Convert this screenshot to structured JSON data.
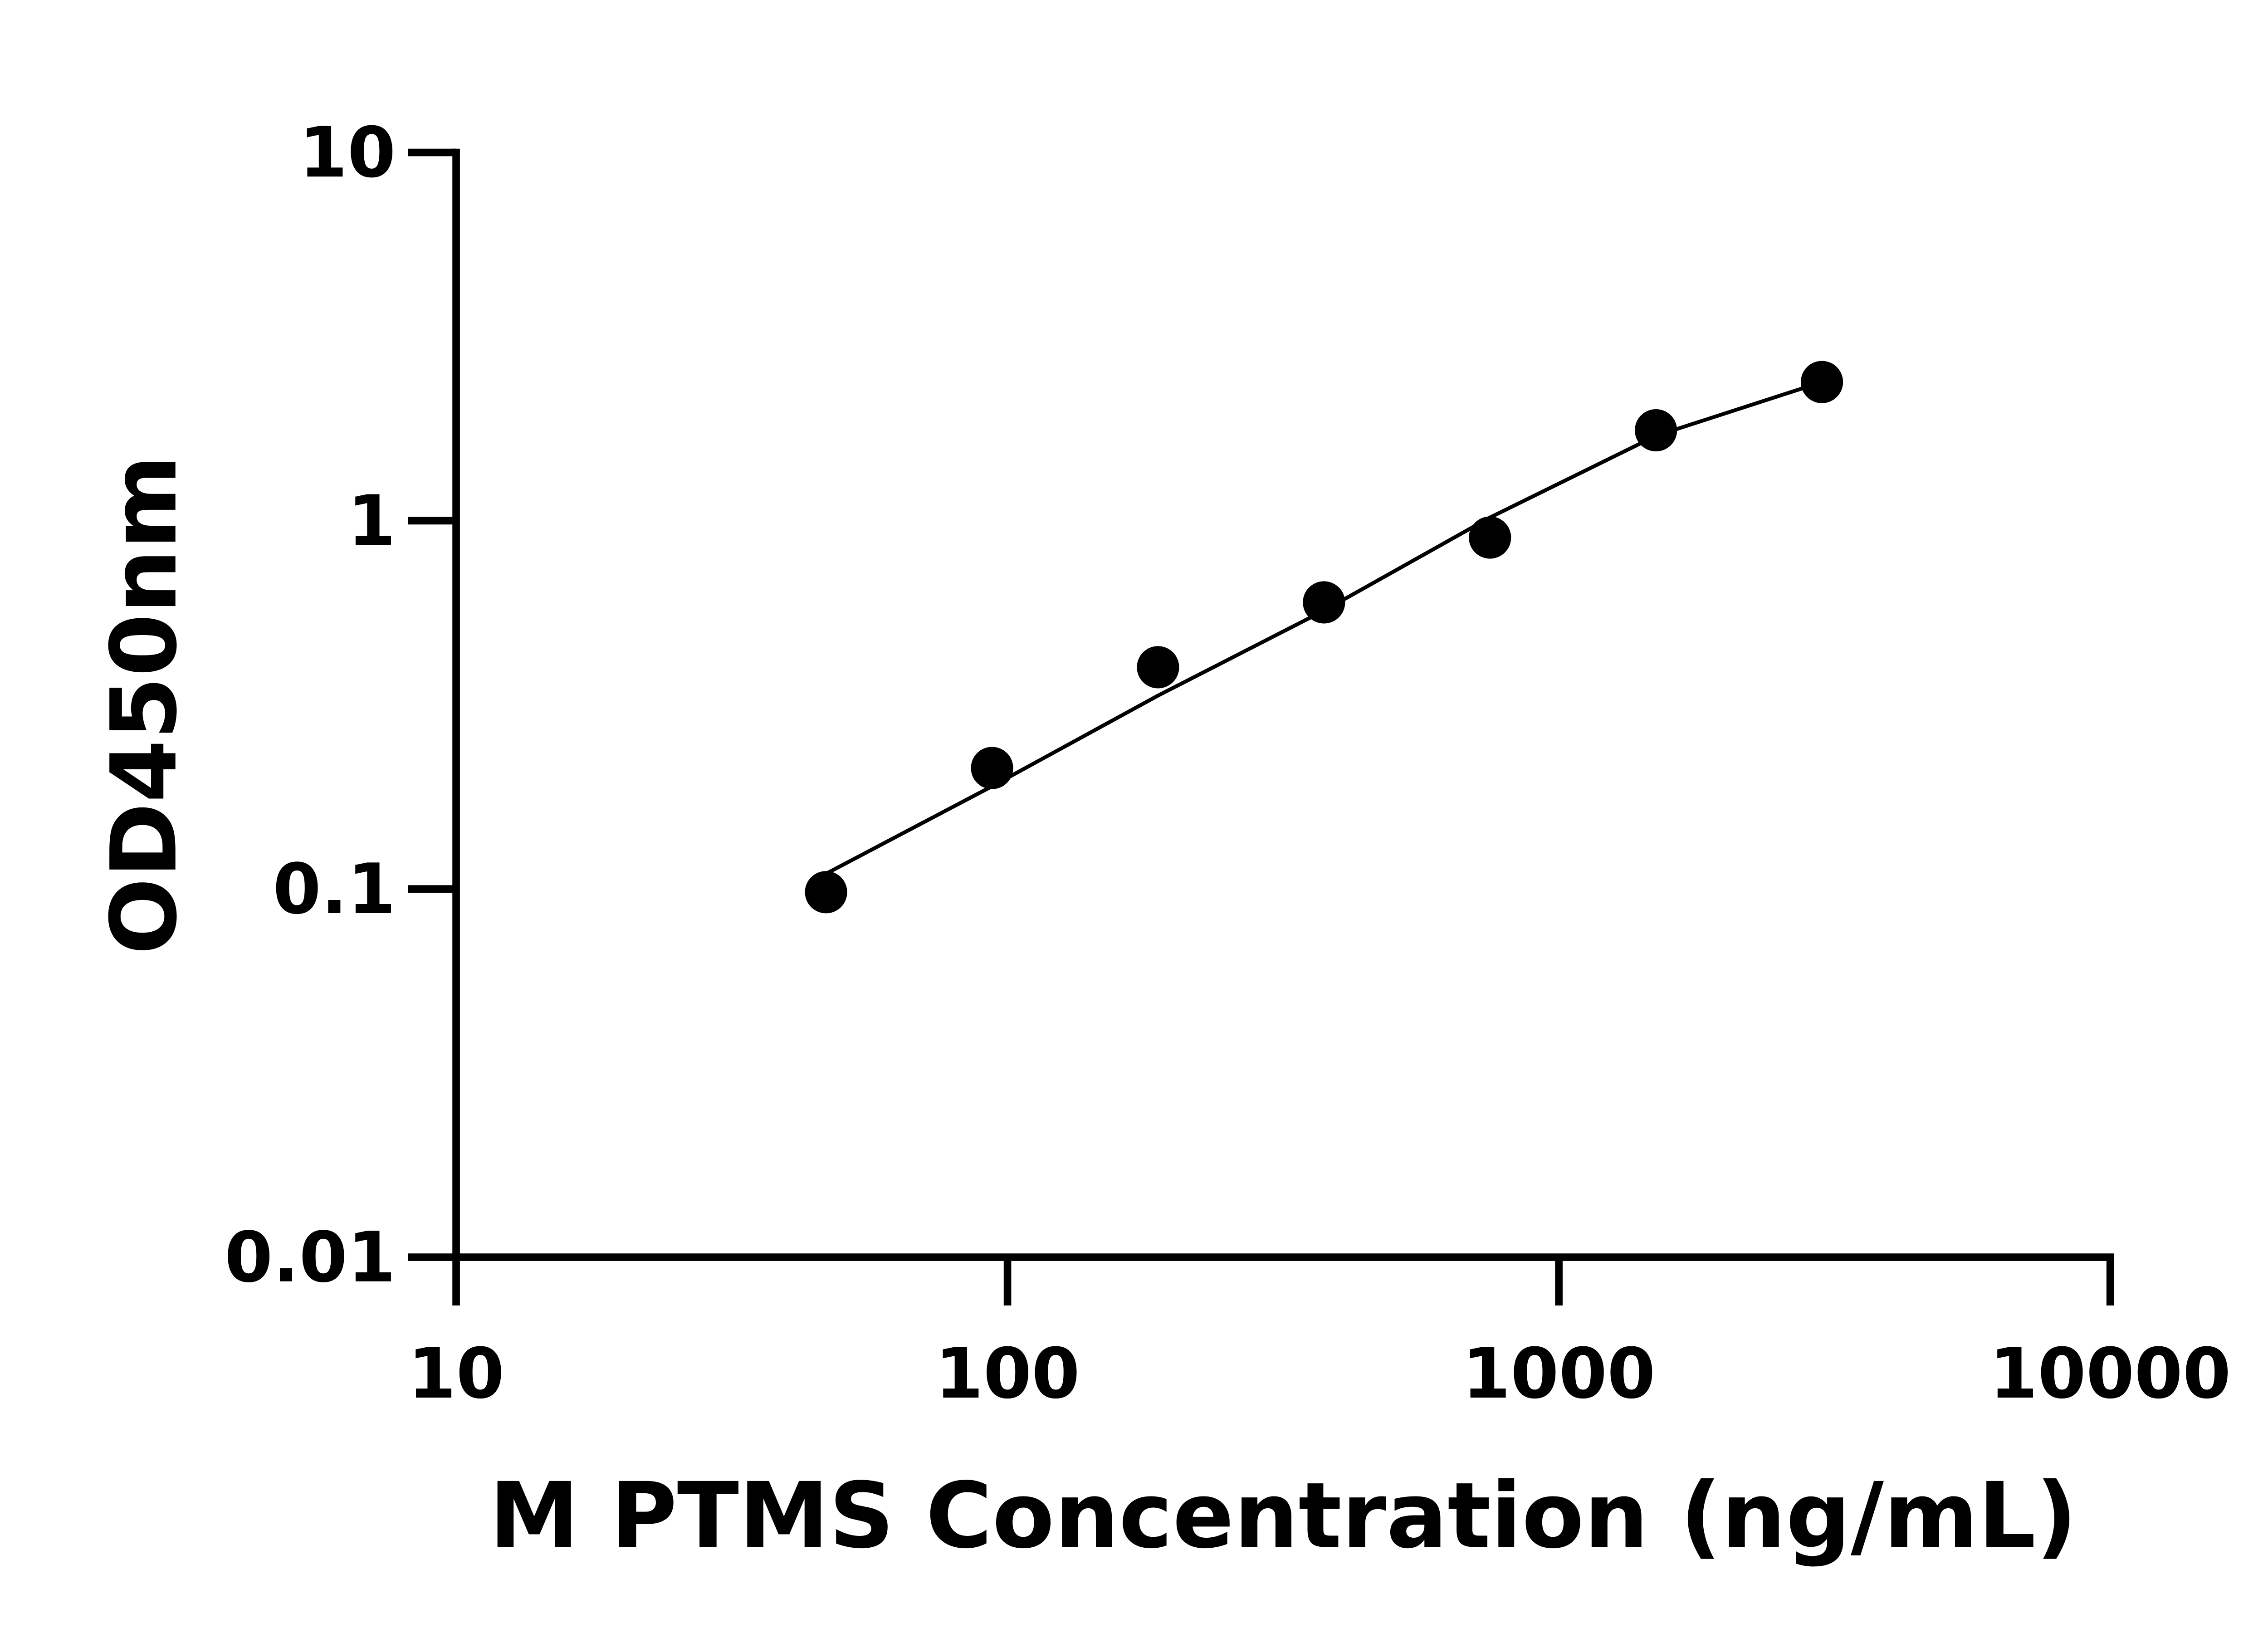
{
  "chart_data": {
    "type": "scatter",
    "x_label": "M PTMS Concentration (ng/mL)",
    "y_label": "OD450nm",
    "x": [
      46.875,
      93.75,
      187.5,
      375,
      750,
      1500,
      3000
    ],
    "series": [
      {
        "color": "#000000",
        "values": [
          0.098,
          0.213,
          0.4,
          0.6,
          0.9,
          1.76,
          2.38
        ]
      }
    ],
    "fit": {
      "x": [
        46.875,
        93.75,
        187.5,
        375,
        750,
        1500,
        3000
      ],
      "values": [
        0.11,
        0.19,
        0.335,
        0.57,
        1.02,
        1.7,
        2.38
      ],
      "color": "#000000"
    },
    "xscale": "log",
    "yscale": "log",
    "xlim": [
      10,
      10000
    ],
    "xticks": [
      10,
      100,
      1000,
      10000
    ],
    "ylim": [
      0.01,
      10
    ],
    "yticks": [
      0.01,
      0.1,
      1,
      10
    ],
    "grid": false
  }
}
